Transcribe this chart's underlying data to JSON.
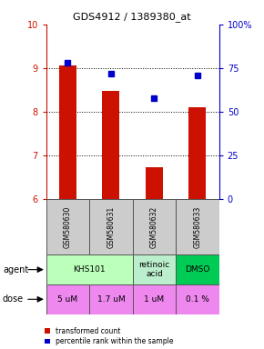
{
  "title": "GDS4912 / 1389380_at",
  "samples": [
    "GSM580630",
    "GSM580631",
    "GSM580632",
    "GSM580633"
  ],
  "bar_values": [
    9.05,
    8.47,
    6.73,
    8.1
  ],
  "scatter_values": [
    78,
    72,
    58,
    71
  ],
  "ylim_left": [
    6,
    10
  ],
  "ylim_right": [
    0,
    100
  ],
  "yticks_left": [
    6,
    7,
    8,
    9,
    10
  ],
  "yticks_right": [
    0,
    25,
    50,
    75,
    100
  ],
  "ytick_labels_right": [
    "0",
    "25",
    "50",
    "75",
    "100%"
  ],
  "bar_color": "#cc1100",
  "scatter_color": "#0000cc",
  "agent_row": [
    {
      "label": "KHS101",
      "span": [
        0,
        2
      ],
      "color": "#bbffbb"
    },
    {
      "label": "retinoic\nacid",
      "span": [
        2,
        3
      ],
      "color": "#bbeecc"
    },
    {
      "label": "DMSO",
      "span": [
        3,
        4
      ],
      "color": "#00cc55"
    }
  ],
  "dose_row": [
    {
      "label": "5 uM",
      "span": [
        0,
        1
      ],
      "color": "#ee88ee"
    },
    {
      "label": "1.7 uM",
      "span": [
        1,
        2
      ],
      "color": "#ee88ee"
    },
    {
      "label": "1 uM",
      "span": [
        2,
        3
      ],
      "color": "#ee88ee"
    },
    {
      "label": "0.1 %",
      "span": [
        3,
        4
      ],
      "color": "#ee88ee"
    }
  ],
  "legend_red": "transformed count",
  "legend_blue": "percentile rank within the sample",
  "agent_label": "agent",
  "dose_label": "dose",
  "sample_bg": "#cccccc",
  "background_color": "#ffffff"
}
